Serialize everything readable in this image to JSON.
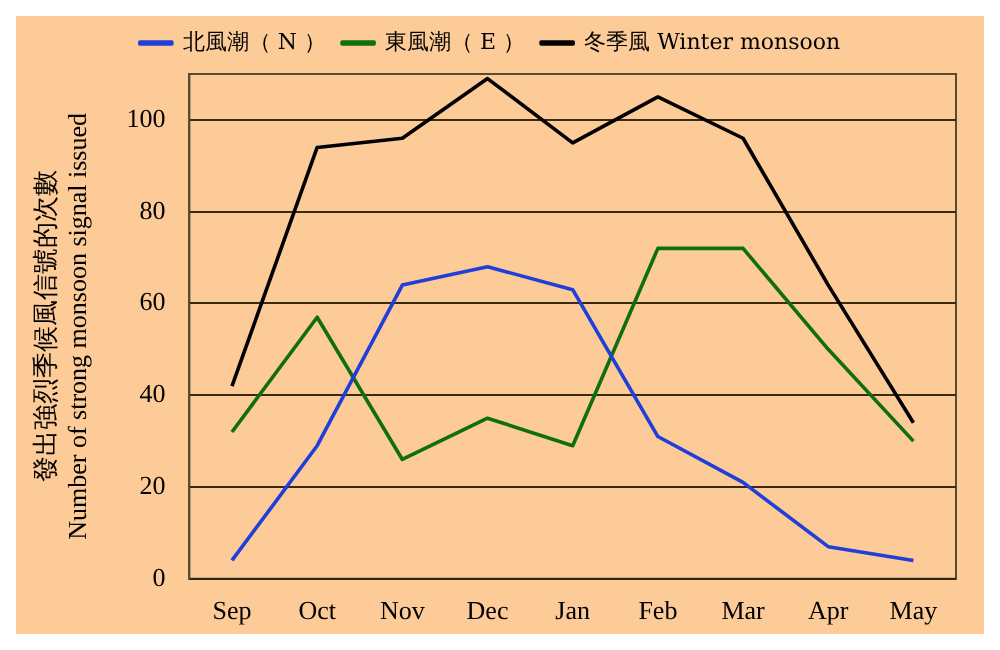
{
  "chart_data": {
    "type": "line",
    "ylabel": "發出強烈季候風信號的次數\nNumber of strong monsoon signal issued",
    "categories": [
      "Sep",
      "Oct",
      "Nov",
      "Dec",
      "Jan",
      "Feb",
      "Mar",
      "Apr",
      "May"
    ],
    "series": [
      {
        "name": "北風潮（ N ）",
        "color": "#1f3fd8",
        "values": [
          4,
          29,
          64,
          68,
          63,
          31,
          21,
          7,
          4
        ]
      },
      {
        "name": "東風潮（ E ）",
        "color": "#0f6e0f",
        "values": [
          32,
          57,
          26,
          35,
          29,
          72,
          72,
          50,
          30
        ]
      },
      {
        "name": "冬季風 Winter monsoon",
        "color": "#000000",
        "values": [
          42,
          94,
          96,
          109,
          95,
          105,
          96,
          64,
          34
        ]
      }
    ],
    "ylim": [
      0,
      110
    ],
    "yticks": [
      0,
      20,
      40,
      60,
      80,
      100
    ],
    "grid": "y",
    "legend": "top",
    "marker": "none",
    "line_style": "solid"
  }
}
